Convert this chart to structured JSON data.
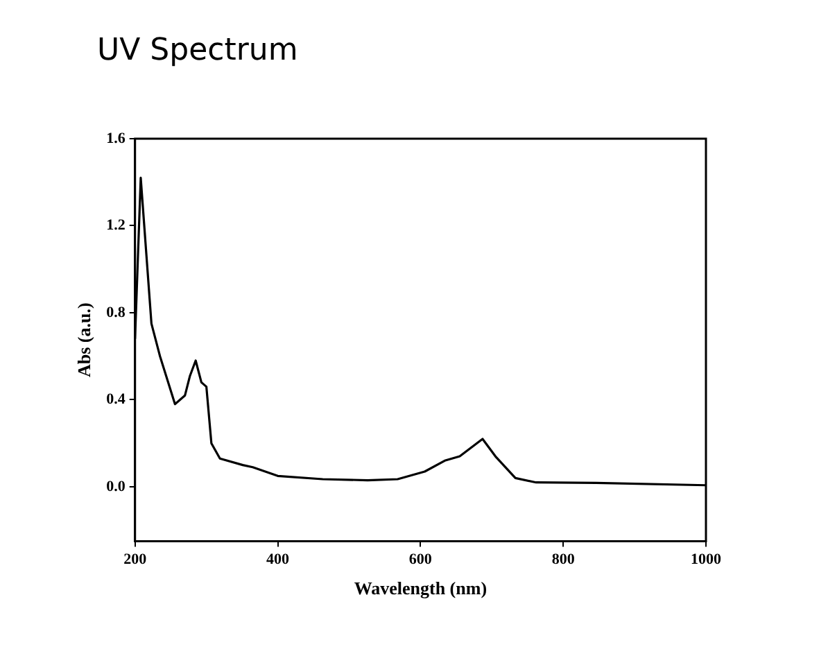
{
  "chart_data": {
    "type": "line",
    "title": "UV Spectrum",
    "xlabel": "Wavelength (nm)",
    "ylabel": "Abs (a.u.)",
    "x": [
      200,
      208,
      223,
      235,
      256,
      270,
      277,
      285,
      293,
      300,
      307,
      319,
      351,
      365,
      400,
      463,
      526,
      568,
      606,
      634,
      655,
      687,
      705,
      733,
      762,
      846,
      1000
    ],
    "series": [
      {
        "color": "#000000",
        "values": [
          0.68,
          1.42,
          0.75,
          0.6,
          0.38,
          0.42,
          0.51,
          0.58,
          0.48,
          0.46,
          0.2,
          0.13,
          0.1,
          0.09,
          0.05,
          0.035,
          0.03,
          0.035,
          0.07,
          0.12,
          0.14,
          0.22,
          0.14,
          0.04,
          0.02,
          0.018,
          0.007
        ]
      }
    ],
    "xlim": [
      200,
      1000
    ],
    "xticks": [
      200,
      400,
      600,
      800,
      1000
    ],
    "ylim": [
      -0.25,
      1.6
    ],
    "yticks": [
      {
        "value": 0,
        "label": "0.0"
      },
      0.4,
      0.8,
      1.2,
      1.6
    ],
    "grid": false,
    "legend": false,
    "marker": "none",
    "line_style": "solid"
  }
}
